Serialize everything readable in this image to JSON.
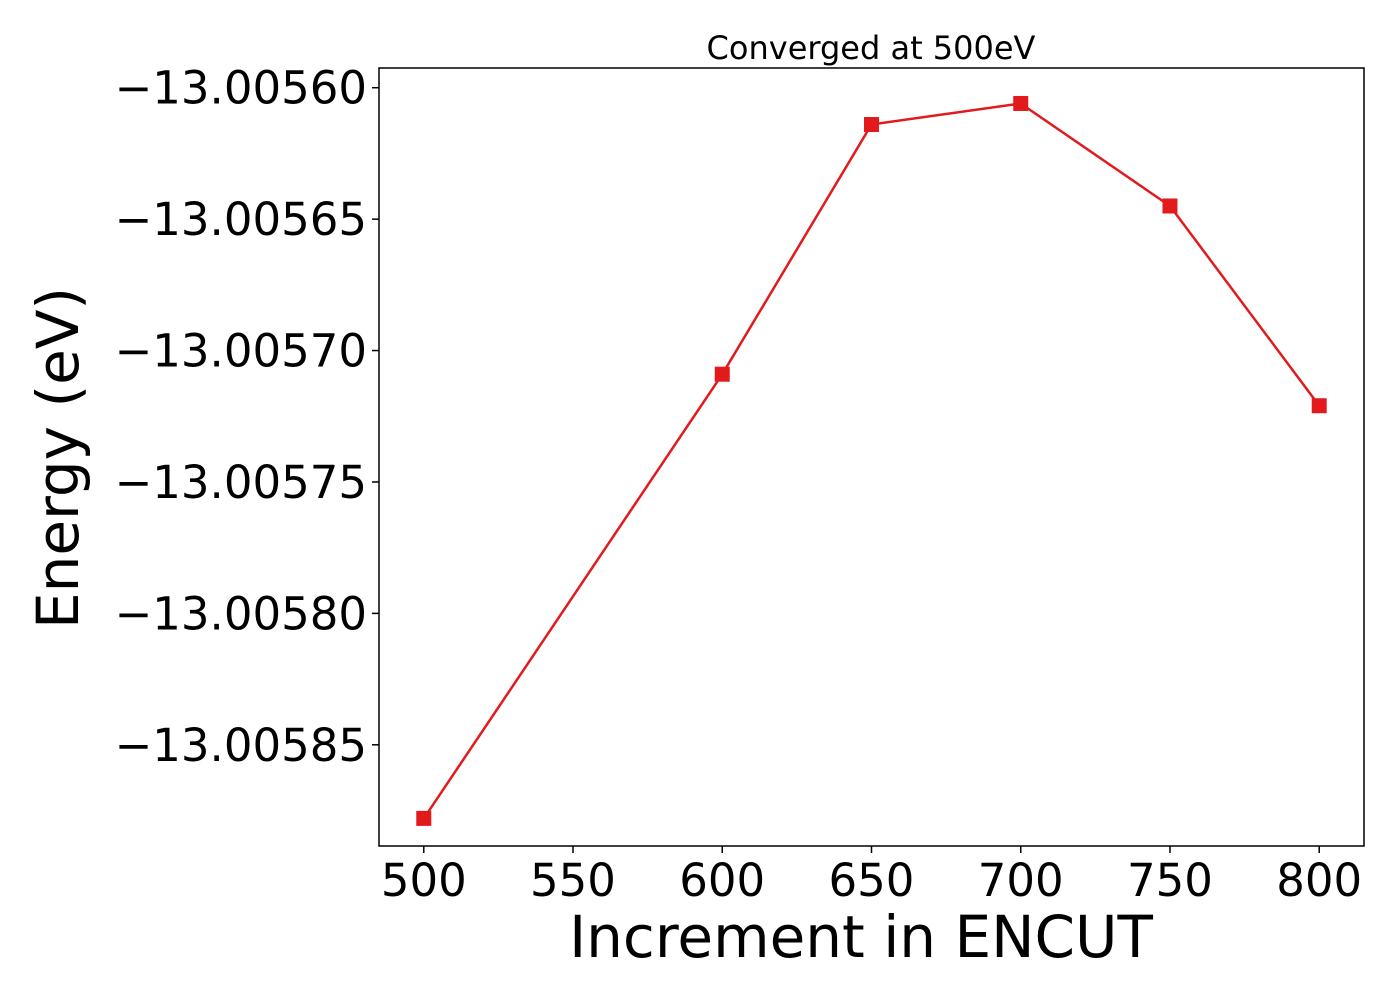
{
  "chart_data": {
    "type": "line",
    "title": "Converged at 500eV",
    "xlabel": "Increment in ENCUT",
    "ylabel": "Energy (eV)",
    "x": [
      500,
      600,
      650,
      700,
      750,
      800
    ],
    "y": [
      -13.005878,
      -13.005709,
      -13.005614,
      -13.005606,
      -13.005645,
      -13.005721
    ],
    "xlim": [
      485,
      815
    ],
    "ylim": [
      -13.0058885,
      -13.0055925
    ],
    "xticks": [
      500,
      550,
      600,
      650,
      700,
      750,
      800
    ],
    "xtick_labels": [
      "500",
      "550",
      "600",
      "650",
      "700",
      "750",
      "800"
    ],
    "yticks": [
      -13.0056,
      -13.00565,
      -13.0057,
      -13.00575,
      -13.0058,
      -13.00585
    ],
    "ytick_labels": [
      "−13.00560",
      "−13.00565",
      "−13.00570",
      "−13.00575",
      "−13.00580",
      "−13.00585"
    ],
    "grid": false,
    "line_color": "#e31a1c",
    "marker": "square"
  }
}
